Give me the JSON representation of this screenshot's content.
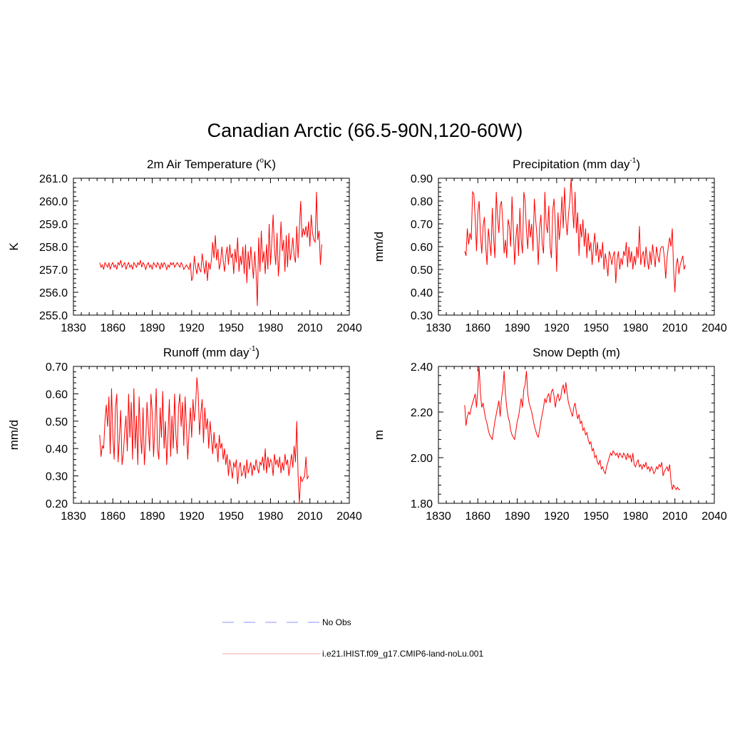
{
  "title": "Canadian Arctic (66.5-90N,120-60W)",
  "legend": [
    {
      "label": "No Obs",
      "color": "#a8a8ff",
      "dash": true
    },
    {
      "label": "i.e21.IHIST.f09_g17.CMIP6-land-noLu.001",
      "color": "#ffb8b8",
      "dash": false
    }
  ],
  "chart_data": [
    {
      "type": "line",
      "title": "2m Air Temperature (",
      "title_sup": "o",
      "title_tail": "K)",
      "ylabel": "K",
      "xlim": [
        1830,
        2040
      ],
      "ylim": [
        255.0,
        261.0
      ],
      "yticks": [
        255.0,
        256.0,
        257.0,
        258.0,
        259.0,
        260.0,
        261.0
      ],
      "ytick_labels": [
        "255.0",
        "256.0",
        "257.0",
        "258.0",
        "259.0",
        "260.0",
        "261.0"
      ],
      "xticks": [
        1830,
        1860,
        1890,
        1920,
        1950,
        1980,
        2010,
        2040
      ],
      "series": [
        {
          "color": "#ff0000",
          "x_start": 1850,
          "values": [
            257.3,
            257.1,
            257.2,
            257.0,
            257.3,
            257.2,
            257.1,
            257.3,
            257.0,
            257.2,
            257.3,
            257.1,
            257.2,
            257.0,
            257.3,
            257.2,
            257.4,
            257.1,
            257.2,
            257.3,
            257.0,
            257.2,
            257.3,
            257.1,
            257.2,
            257.0,
            257.3,
            257.2,
            257.1,
            257.3,
            257.2,
            257.4,
            257.1,
            257.3,
            257.2,
            257.0,
            257.2,
            257.3,
            257.1,
            257.2,
            257.0,
            257.3,
            257.2,
            257.1,
            257.3,
            257.2,
            257.0,
            257.3,
            257.1,
            257.3,
            257.2,
            257.0,
            257.2,
            257.1,
            257.3,
            257.2,
            257.3,
            257.1,
            257.2,
            257.3,
            257.2,
            257.1,
            257.3,
            257.2,
            257.0,
            257.1,
            257.2,
            257.1,
            257.0,
            257.3,
            256.5,
            256.7,
            257.6,
            257.1,
            256.8,
            257.3,
            257.0,
            256.9,
            257.7,
            257.2,
            256.8,
            257.4,
            256.5,
            257.3,
            257.0,
            257.4,
            258.2,
            257.5,
            258.5,
            257.4,
            257.9,
            257.0,
            257.3,
            258.0,
            257.4,
            256.9,
            257.6,
            258.0,
            257.2,
            258.1,
            257.5,
            257.7,
            256.8,
            257.9,
            257.3,
            258.4,
            256.9,
            257.6,
            257.2,
            258.0,
            256.8,
            258.1,
            256.4,
            257.8,
            257.0,
            258.0,
            257.3,
            256.6,
            257.8,
            256.9,
            255.4,
            258.4,
            256.9,
            258.7,
            257.3,
            257.8,
            256.8,
            258.1,
            257.0,
            259.0,
            257.2,
            258.2,
            259.4,
            257.9,
            257.2,
            258.6,
            256.7,
            257.6,
            259.1,
            257.8,
            258.3,
            256.9,
            258.5,
            257.1,
            258.6,
            257.4,
            257.8,
            258.4,
            257.6,
            257.3,
            258.9,
            257.5,
            258.8,
            260.0,
            258.4,
            258.8,
            258.5,
            258.9,
            258.4,
            259.1,
            258.0,
            259.4,
            258.6,
            258.3,
            258.2,
            260.4,
            258.3,
            258.7,
            257.2,
            258.1
          ]
        }
      ]
    },
    {
      "type": "line",
      "title": "Precipitation (mm day",
      "title_sup": "-1",
      "title_tail": ")",
      "ylabel": "mm/d",
      "xlim": [
        1830,
        2040
      ],
      "ylim": [
        0.3,
        0.9
      ],
      "yticks": [
        0.3,
        0.4,
        0.5,
        0.6,
        0.7,
        0.8,
        0.9
      ],
      "ytick_labels": [
        "0.30",
        "0.40",
        "0.50",
        "0.60",
        "0.70",
        "0.80",
        "0.90"
      ],
      "xticks": [
        1830,
        1860,
        1890,
        1920,
        1950,
        1980,
        2010,
        2040
      ],
      "series": [
        {
          "color": "#ff0000",
          "x_start": 1850,
          "values": [
            0.58,
            0.56,
            0.68,
            0.61,
            0.66,
            0.63,
            0.84,
            0.83,
            0.72,
            0.58,
            0.75,
            0.8,
            0.65,
            0.57,
            0.69,
            0.73,
            0.6,
            0.52,
            0.68,
            0.62,
            0.56,
            0.77,
            0.64,
            0.55,
            0.84,
            0.73,
            0.66,
            0.78,
            0.8,
            0.7,
            0.57,
            0.63,
            0.55,
            0.72,
            0.69,
            0.6,
            0.82,
            0.68,
            0.52,
            0.64,
            0.7,
            0.56,
            0.77,
            0.63,
            0.57,
            0.84,
            0.8,
            0.67,
            0.59,
            0.72,
            0.64,
            0.7,
            0.58,
            0.81,
            0.72,
            0.65,
            0.52,
            0.68,
            0.74,
            0.61,
            0.57,
            0.84,
            0.7,
            0.66,
            0.78,
            0.6,
            0.55,
            0.76,
            0.81,
            0.69,
            0.49,
            0.75,
            0.63,
            0.7,
            0.82,
            0.68,
            0.86,
            0.72,
            0.65,
            0.74,
            0.8,
            0.9,
            0.78,
            0.68,
            0.84,
            0.66,
            0.75,
            0.56,
            0.7,
            0.64,
            0.72,
            0.6,
            0.68,
            0.55,
            0.66,
            0.58,
            0.62,
            0.52,
            0.6,
            0.66,
            0.56,
            0.62,
            0.53,
            0.59,
            0.55,
            0.62,
            0.5,
            0.57,
            0.53,
            0.47,
            0.58,
            0.56,
            0.52,
            0.56,
            0.58,
            0.44,
            0.54,
            0.58,
            0.5,
            0.55,
            0.52,
            0.58,
            0.56,
            0.62,
            0.51,
            0.6,
            0.53,
            0.58,
            0.5,
            0.56,
            0.52,
            0.6,
            0.55,
            0.69,
            0.52,
            0.56,
            0.58,
            0.51,
            0.6,
            0.54,
            0.5,
            0.58,
            0.52,
            0.61,
            0.56,
            0.51,
            0.6,
            0.56,
            0.53,
            0.59,
            0.6,
            0.6,
            0.55,
            0.46,
            0.55,
            0.6,
            0.64,
            0.6,
            0.68,
            0.5,
            0.4,
            0.52,
            0.55,
            0.48,
            0.52,
            0.54,
            0.56,
            0.5,
            0.52
          ]
        }
      ]
    },
    {
      "type": "line",
      "title": "Runoff (mm day",
      "title_sup": "-1",
      "title_tail": ")",
      "ylabel": "mm/d",
      "xlim": [
        1830,
        2040
      ],
      "ylim": [
        0.2,
        0.7
      ],
      "yticks": [
        0.2,
        0.3,
        0.4,
        0.5,
        0.6,
        0.7
      ],
      "ytick_labels": [
        "0.20",
        "0.30",
        "0.40",
        "0.50",
        "0.60",
        "0.70"
      ],
      "xticks": [
        1830,
        1860,
        1890,
        1920,
        1950,
        1980,
        2010,
        2040
      ],
      "series": [
        {
          "color": "#ff0000",
          "x_start": 1850,
          "values": [
            0.45,
            0.37,
            0.41,
            0.4,
            0.5,
            0.56,
            0.48,
            0.59,
            0.38,
            0.62,
            0.45,
            0.36,
            0.55,
            0.6,
            0.35,
            0.44,
            0.54,
            0.34,
            0.38,
            0.46,
            0.52,
            0.39,
            0.6,
            0.44,
            0.57,
            0.36,
            0.62,
            0.4,
            0.52,
            0.34,
            0.59,
            0.45,
            0.38,
            0.55,
            0.34,
            0.42,
            0.57,
            0.48,
            0.39,
            0.6,
            0.53,
            0.37,
            0.48,
            0.62,
            0.4,
            0.36,
            0.55,
            0.44,
            0.61,
            0.4,
            0.5,
            0.34,
            0.45,
            0.58,
            0.37,
            0.52,
            0.4,
            0.6,
            0.45,
            0.38,
            0.55,
            0.6,
            0.48,
            0.57,
            0.41,
            0.59,
            0.48,
            0.36,
            0.46,
            0.55,
            0.44,
            0.58,
            0.5,
            0.56,
            0.66,
            0.6,
            0.45,
            0.53,
            0.58,
            0.42,
            0.55,
            0.47,
            0.51,
            0.4,
            0.5,
            0.44,
            0.38,
            0.46,
            0.4,
            0.42,
            0.35,
            0.45,
            0.4,
            0.42,
            0.36,
            0.4,
            0.34,
            0.38,
            0.3,
            0.36,
            0.33,
            0.29,
            0.35,
            0.33,
            0.36,
            0.27,
            0.33,
            0.35,
            0.3,
            0.31,
            0.34,
            0.29,
            0.36,
            0.31,
            0.33,
            0.35,
            0.3,
            0.34,
            0.32,
            0.36,
            0.33,
            0.31,
            0.35,
            0.34,
            0.37,
            0.32,
            0.4,
            0.31,
            0.37,
            0.33,
            0.36,
            0.35,
            0.3,
            0.38,
            0.34,
            0.36,
            0.33,
            0.37,
            0.31,
            0.35,
            0.32,
            0.38,
            0.34,
            0.36,
            0.3,
            0.34,
            0.38,
            0.33,
            0.41,
            0.35,
            0.5,
            0.3,
            0.2,
            0.3,
            0.28,
            0.29,
            0.3,
            0.37,
            0.29,
            0.3
          ]
        }
      ]
    },
    {
      "type": "line",
      "title": "Snow Depth (m)",
      "title_sup": "",
      "title_tail": "",
      "ylabel": "m",
      "xlim": [
        1830,
        2040
      ],
      "ylim": [
        1.8,
        2.4
      ],
      "yticks": [
        1.8,
        2.0,
        2.2,
        2.4
      ],
      "ytick_labels": [
        "1.80",
        "2.00",
        "2.20",
        "2.40"
      ],
      "xticks": [
        1830,
        1860,
        1890,
        1920,
        1950,
        1980,
        2010,
        2040
      ],
      "series": [
        {
          "color": "#ff0000",
          "x_start": 1850,
          "values": [
            2.23,
            2.14,
            2.18,
            2.2,
            2.19,
            2.22,
            2.24,
            2.26,
            2.28,
            2.22,
            2.3,
            2.4,
            2.28,
            2.22,
            2.24,
            2.2,
            2.17,
            2.15,
            2.12,
            2.1,
            2.09,
            2.08,
            2.12,
            2.16,
            2.19,
            2.22,
            2.25,
            2.18,
            2.26,
            2.3,
            2.38,
            2.28,
            2.22,
            2.18,
            2.16,
            2.12,
            2.1,
            2.09,
            2.08,
            2.12,
            2.16,
            2.18,
            2.22,
            2.26,
            2.22,
            2.3,
            2.32,
            2.38,
            2.28,
            2.24,
            2.22,
            2.2,
            2.17,
            2.14,
            2.12,
            2.1,
            2.09,
            2.12,
            2.16,
            2.19,
            2.22,
            2.26,
            2.24,
            2.27,
            2.28,
            2.24,
            2.29,
            2.3,
            2.27,
            2.22,
            2.26,
            2.28,
            2.25,
            2.26,
            2.3,
            2.32,
            2.28,
            2.33,
            2.28,
            2.24,
            2.22,
            2.2,
            2.18,
            2.22,
            2.24,
            2.2,
            2.17,
            2.19,
            2.15,
            2.16,
            2.12,
            2.13,
            2.1,
            2.11,
            2.08,
            2.06,
            2.07,
            2.03,
            2.04,
            2.0,
            2.01,
            1.98,
            1.97,
            1.99,
            1.95,
            1.96,
            1.94,
            1.93,
            1.96,
            1.98,
            2.0,
            2.02,
            2.01,
            2.03,
            2.02,
            2.01,
            2.02,
            2.0,
            2.02,
            2.01,
            2.0,
            2.02,
            2.01,
            1.99,
            2.02,
            2.0,
            2.01,
            1.98,
            2.02,
            1.97,
            1.96,
            1.98,
            1.99,
            1.96,
            1.97,
            1.95,
            1.97,
            1.96,
            1.98,
            1.95,
            1.96,
            1.94,
            1.96,
            1.95,
            1.93,
            1.94,
            1.96,
            1.95,
            1.97,
            1.96,
            1.98,
            1.92,
            1.94,
            1.95,
            1.96,
            1.94,
            1.97,
            1.9,
            1.86,
            1.88,
            1.87,
            1.86,
            1.87,
            1.86,
            1.86
          ]
        }
      ]
    }
  ]
}
